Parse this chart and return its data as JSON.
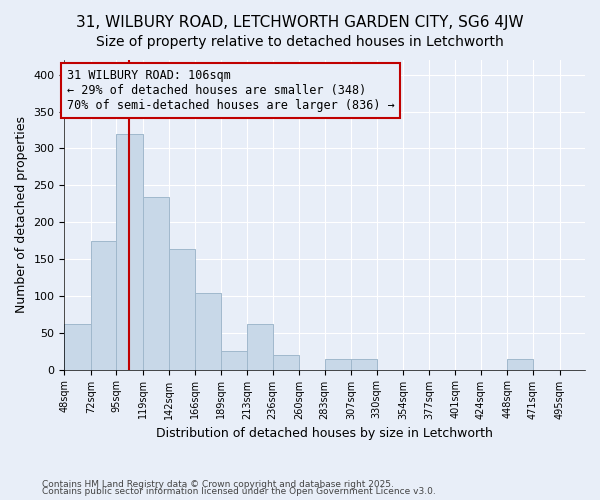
{
  "title1": "31, WILBURY ROAD, LETCHWORTH GARDEN CITY, SG6 4JW",
  "title2": "Size of property relative to detached houses in Letchworth",
  "xlabel": "Distribution of detached houses by size in Letchworth",
  "ylabel": "Number of detached properties",
  "bar_edges": [
    48,
    72,
    95,
    119,
    142,
    166,
    189,
    213,
    236,
    260,
    283,
    307,
    330,
    354,
    377,
    401,
    424,
    448,
    471,
    495,
    518
  ],
  "bar_heights": [
    62,
    175,
    320,
    234,
    163,
    104,
    25,
    62,
    20,
    0,
    15,
    15,
    0,
    0,
    0,
    0,
    0,
    15,
    0,
    0
  ],
  "bar_color": "#c8d8e8",
  "bar_edgecolor": "#a0b8cc",
  "property_size": 106,
  "vline_color": "#c00000",
  "annotation_text": "31 WILBURY ROAD: 106sqm\n← 29% of detached houses are smaller (348)\n70% of semi-detached houses are larger (836) →",
  "annotation_box_edgecolor": "#c00000",
  "annotation_fontsize": 8.5,
  "footnote1": "Contains HM Land Registry data © Crown copyright and database right 2025.",
  "footnote2": "Contains public sector information licensed under the Open Government Licence v3.0.",
  "ylim": [
    0,
    420
  ],
  "yticks": [
    0,
    50,
    100,
    150,
    200,
    250,
    300,
    350,
    400
  ],
  "bg_color": "#e8eef8",
  "grid_color": "#ffffff",
  "title1_fontsize": 11,
  "title2_fontsize": 10
}
